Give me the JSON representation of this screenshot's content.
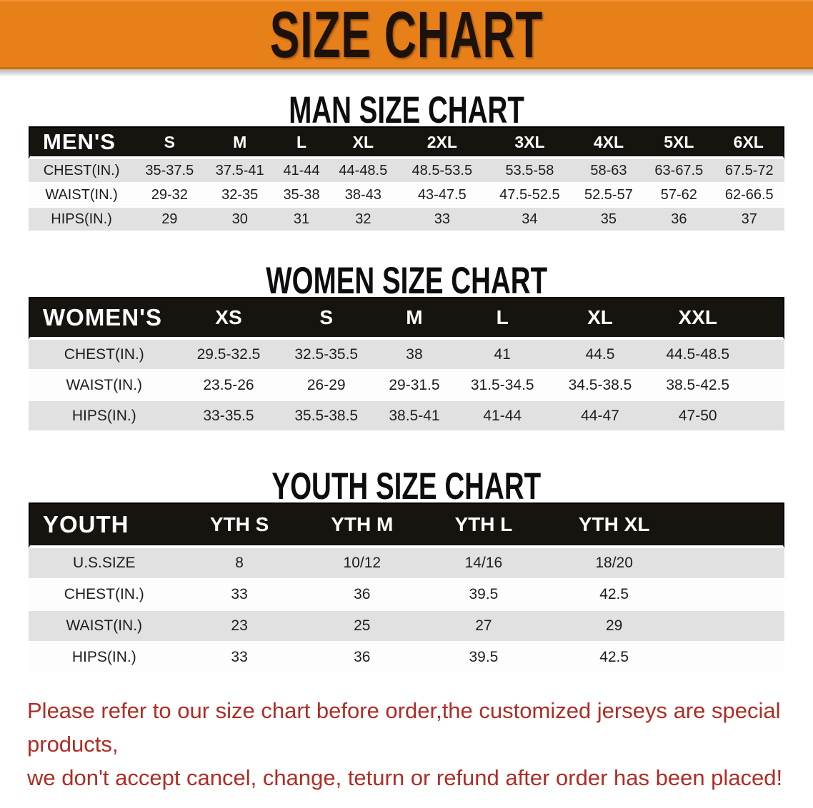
{
  "banner": {
    "title": "SIZE CHART",
    "bg_color": "#e8801a",
    "text_color": "#1c120a"
  },
  "sections": [
    {
      "heading": "MAN SIZE CHART",
      "header_label": "MEN'S",
      "columns": [
        "S",
        "M",
        "L",
        "XL",
        "2XL",
        "3XL",
        "4XL",
        "5XL",
        "6XL"
      ],
      "rows": [
        {
          "label": "CHEST(IN.)",
          "values": [
            "35-37.5",
            "37.5-41",
            "41-44",
            "44-48.5",
            "48.5-53.5",
            "53.5-58",
            "58-63",
            "63-67.5",
            "67.5-72"
          ]
        },
        {
          "label": "WAIST(IN.)",
          "values": [
            "29-32",
            "32-35",
            "35-38",
            "38-43",
            "43-47.5",
            "47.5-52.5",
            "52.5-57",
            "57-62",
            "62-66.5"
          ]
        },
        {
          "label": "HIPS(IN.)",
          "values": [
            "29",
            "30",
            "31",
            "32",
            "33",
            "34",
            "35",
            "36",
            "37"
          ]
        }
      ]
    },
    {
      "heading": "WOMEN SIZE CHART",
      "header_label": "WOMEN'S",
      "columns": [
        "XS",
        "S",
        "M",
        "L",
        "XL",
        "XXL"
      ],
      "rows": [
        {
          "label": "CHEST(IN.)",
          "values": [
            "29.5-32.5",
            "32.5-35.5",
            "38",
            "41",
            "44.5",
            "44.5-48.5"
          ]
        },
        {
          "label": "WAIST(IN.)",
          "values": [
            "23.5-26",
            "26-29",
            "29-31.5",
            "31.5-34.5",
            "34.5-38.5",
            "38.5-42.5"
          ]
        },
        {
          "label": "HIPS(IN.)",
          "values": [
            "33-35.5",
            "35.5-38.5",
            "38.5-41",
            "41-44",
            "44-47",
            "47-50"
          ]
        }
      ]
    },
    {
      "heading": "YOUTH SIZE CHART",
      "header_label": "YOUTH",
      "columns": [
        "YTH S",
        "YTH M",
        "YTH L",
        "YTH XL"
      ],
      "rows": [
        {
          "label": "U.S.SIZE",
          "values": [
            "8",
            "10/12",
            "14/16",
            "18/20"
          ]
        },
        {
          "label": "CHEST(IN.)",
          "values": [
            "33",
            "36",
            "39.5",
            "42.5"
          ]
        },
        {
          "label": "WAIST(IN.)",
          "values": [
            "23",
            "25",
            "27",
            "29"
          ]
        },
        {
          "label": "HIPS(IN.)",
          "values": [
            "33",
            "36",
            "39.5",
            "42.5"
          ]
        }
      ]
    }
  ],
  "footer": {
    "line1": "Please refer to our size chart before order,the customized jerseys are special products,",
    "line2": "we don't accept cancel, change, teturn or refund after order has been placed!",
    "text_color": "#b02c24"
  },
  "colors": {
    "header_black": "#17130f",
    "stripe_gray": "#e1e1e1",
    "stripe_white": "#fdfdfd"
  }
}
